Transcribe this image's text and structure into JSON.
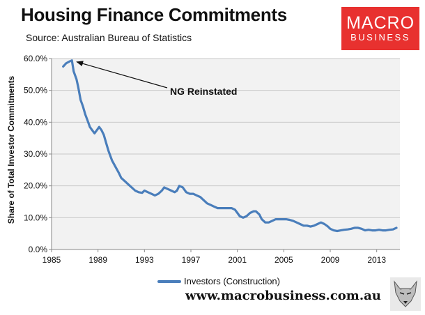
{
  "header": {
    "title": "Housing Finance Commitments",
    "subtitle": "Source: Australian Bureau of Statistics"
  },
  "logo": {
    "line1": "MACRO",
    "line2": "BUSINESS",
    "color": "#e8312f"
  },
  "footer": {
    "website": "www.macrobusiness.com.au"
  },
  "chart_data": {
    "type": "line",
    "title": "Housing Finance Commitments",
    "xlabel": "",
    "ylabel": "Share of Total Investor Commitments",
    "xlim": [
      1985,
      2015
    ],
    "ylim": [
      0,
      60
    ],
    "x_ticks": [
      "1985",
      "1989",
      "1993",
      "1997",
      "2001",
      "2005",
      "2009",
      "2013"
    ],
    "y_ticks": [
      "0.0%",
      "10.0%",
      "20.0%",
      "30.0%",
      "40.0%",
      "50.0%",
      "60.0%"
    ],
    "grid": "horizontal",
    "legend_position": "bottom",
    "annotation": {
      "text": "NG Reinstated",
      "x": 1986.75,
      "y": 59.4
    },
    "series": [
      {
        "name": "Investors (Construction)",
        "color": "#4a7ebb",
        "x": [
          1986.0,
          1986.25,
          1986.5,
          1986.75,
          1986.9,
          1987.0,
          1987.15,
          1987.3,
          1987.5,
          1987.7,
          1987.9,
          1988.1,
          1988.3,
          1988.5,
          1988.7,
          1988.9,
          1989.1,
          1989.3,
          1989.5,
          1989.7,
          1989.9,
          1990.2,
          1990.5,
          1990.8,
          1991.0,
          1991.3,
          1991.6,
          1991.9,
          1992.2,
          1992.5,
          1992.8,
          1993.0,
          1993.3,
          1993.6,
          1993.9,
          1994.2,
          1994.5,
          1994.7,
          1995.0,
          1995.3,
          1995.6,
          1995.8,
          1996.0,
          1996.3,
          1996.6,
          1996.9,
          1997.2,
          1997.5,
          1997.8,
          1998.1,
          1998.4,
          1998.7,
          1999.0,
          1999.3,
          1999.6,
          1999.9,
          2000.2,
          2000.5,
          2000.8,
          2001.0,
          2001.2,
          2001.5,
          2001.8,
          2002.1,
          2002.4,
          2002.6,
          2002.9,
          2003.1,
          2003.4,
          2003.7,
          2004.0,
          2004.3,
          2004.6,
          2004.9,
          2005.2,
          2005.5,
          2005.8,
          2006.1,
          2006.4,
          2006.7,
          2007.0,
          2007.3,
          2007.6,
          2007.9,
          2008.2,
          2008.5,
          2008.8,
          2009.0,
          2009.3,
          2009.6,
          2009.9,
          2010.2,
          2010.5,
          2010.8,
          2011.1,
          2011.4,
          2011.7,
          2012.0,
          2012.3,
          2012.6,
          2012.9,
          2013.2,
          2013.5,
          2013.8,
          2014.1,
          2014.4,
          2014.7
        ],
        "values": [
          57.5,
          58.5,
          59.0,
          59.4,
          56.0,
          55.0,
          53.5,
          51.0,
          47.0,
          45.0,
          42.5,
          40.5,
          38.5,
          37.5,
          36.5,
          37.5,
          38.5,
          37.5,
          36.0,
          33.5,
          31.0,
          28.0,
          26.0,
          24.0,
          22.5,
          21.5,
          20.5,
          19.5,
          18.5,
          18.0,
          17.8,
          18.5,
          18.0,
          17.5,
          17.0,
          17.5,
          18.5,
          19.5,
          19.0,
          18.5,
          18.0,
          18.5,
          20.0,
          19.5,
          18.0,
          17.5,
          17.5,
          17.0,
          16.5,
          15.5,
          14.5,
          14.0,
          13.5,
          13.0,
          13.0,
          13.0,
          13.0,
          13.0,
          12.5,
          11.5,
          10.5,
          10.0,
          10.5,
          11.5,
          12.0,
          12.0,
          11.0,
          9.5,
          8.5,
          8.5,
          9.0,
          9.5,
          9.5,
          9.5,
          9.5,
          9.3,
          9.0,
          8.5,
          8.0,
          7.5,
          7.5,
          7.2,
          7.5,
          8.0,
          8.5,
          8.0,
          7.2,
          6.5,
          6.0,
          5.8,
          6.0,
          6.2,
          6.3,
          6.5,
          6.8,
          6.8,
          6.5,
          6.0,
          6.2,
          6.0,
          6.0,
          6.2,
          6.0,
          6.0,
          6.2,
          6.3,
          6.8
        ]
      }
    ]
  }
}
